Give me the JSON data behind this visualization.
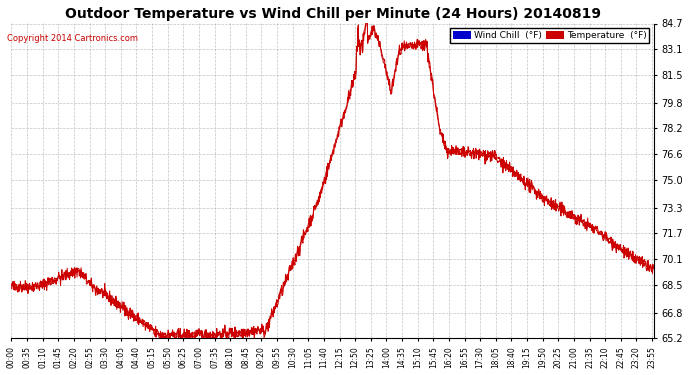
{
  "title": "Outdoor Temperature vs Wind Chill per Minute (24 Hours) 20140819",
  "copyright": "Copyright 2014 Cartronics.com",
  "bg_color": "#ffffff",
  "plot_bg_color": "#ffffff",
  "grid_color": "#aaaaaa",
  "line_color": "#cc0000",
  "ylim_min": 65.2,
  "ylim_max": 84.7,
  "yticks": [
    65.2,
    66.8,
    68.5,
    70.1,
    71.7,
    73.3,
    75.0,
    76.6,
    78.2,
    79.8,
    81.5,
    83.1,
    84.7
  ],
  "legend_wind_chill_color": "#0000cc",
  "legend_temp_color": "#cc0000",
  "legend_wind_chill_label": "Wind Chill  (°F)",
  "legend_temp_label": "Temperature  (°F)"
}
